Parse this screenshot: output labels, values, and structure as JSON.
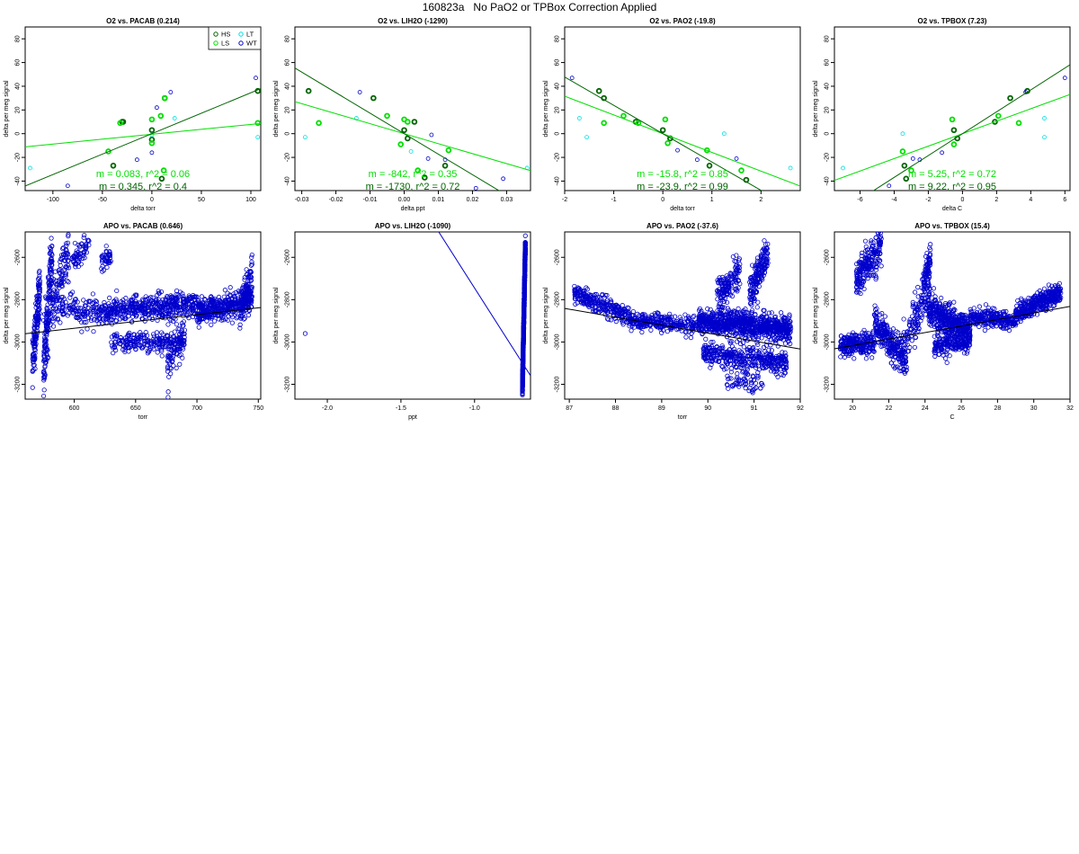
{
  "page": {
    "title": "160823a   No PaO2 or TPBox Correction Applied"
  },
  "colors": {
    "hs": "#006400",
    "ls": "#00e000",
    "lt": "#00e0e0",
    "wt": "#0000cc",
    "fit_dark": "#006400",
    "fit_light": "#00e000",
    "axis": "#000000"
  },
  "chart_data": [
    {
      "type": "scatter",
      "title": "O2 vs. PACAB (0.214)",
      "xlabel": "delta torr",
      "ylabel": "delta per meg signal",
      "xlim": [
        -128,
        110
      ],
      "ylim": [
        -48,
        90
      ],
      "xticks": [
        -100,
        -50,
        0,
        50,
        100
      ],
      "yticks": [
        -40,
        -20,
        0,
        20,
        40,
        60,
        80
      ],
      "legend": {
        "position": "top-right",
        "entries": [
          {
            "key": "hs",
            "label": "HS"
          },
          {
            "key": "lt",
            "label": "LT"
          },
          {
            "key": "ls",
            "label": "LS"
          },
          {
            "key": "wt",
            "label": "WT"
          }
        ]
      },
      "fits": [
        {
          "key": "fit_light",
          "slope": 0.083,
          "intercept": -0.5,
          "label": "m = 0.083, r^2 = 0.06"
        },
        {
          "key": "fit_dark",
          "slope": 0.345,
          "intercept": 0,
          "label": "m = 0.345, r^2 = 0.4"
        }
      ],
      "series": [
        {
          "key": "hs",
          "points": [
            [
              -30,
              10
            ],
            [
              -29,
              10
            ],
            [
              0,
              3
            ],
            [
              0,
              -5
            ],
            [
              10,
              -38
            ],
            [
              13,
              30
            ],
            [
              107,
              36
            ],
            [
              -39,
              -27
            ]
          ]
        },
        {
          "key": "ls",
          "points": [
            [
              -32,
              9
            ],
            [
              0,
              12
            ],
            [
              0,
              -8
            ],
            [
              9,
              15
            ],
            [
              12,
              -31
            ],
            [
              13,
              30
            ],
            [
              107,
              9
            ],
            [
              -44,
              -15
            ]
          ]
        },
        {
          "key": "lt",
          "points": [
            [
              -123,
              -29
            ],
            [
              0,
              -1
            ],
            [
              23,
              13
            ],
            [
              107,
              -3
            ]
          ]
        },
        {
          "key": "wt",
          "points": [
            [
              -85,
              -44
            ],
            [
              -15,
              -22
            ],
            [
              0,
              -16
            ],
            [
              5,
              22
            ],
            [
              19,
              35
            ],
            [
              105,
              47
            ]
          ]
        }
      ]
    },
    {
      "type": "scatter",
      "title": "O2 vs. LIH2O (-1290)",
      "xlabel": "delta ppt",
      "ylabel": "delta per meg signal",
      "xlim": [
        -0.032,
        0.037
      ],
      "ylim": [
        -48,
        90
      ],
      "xticks": [
        -0.03,
        -0.02,
        -0.01,
        0.0,
        0.01,
        0.02,
        0.03
      ],
      "xtick_labels": [
        "-0.03",
        "-0.02",
        "-0.01",
        "0.00",
        "0.01",
        "0.02",
        "0.03"
      ],
      "yticks": [
        -40,
        -20,
        0,
        20,
        40,
        60,
        80
      ],
      "fits": [
        {
          "key": "fit_light",
          "slope": -842,
          "intercept": 0,
          "label": "m = -842, r^2 = 0.35"
        },
        {
          "key": "fit_dark",
          "slope": -1730,
          "intercept": 0,
          "label": "m = -1730, r^2 = 0.72"
        }
      ],
      "series": [
        {
          "key": "hs",
          "points": [
            [
              -0.028,
              36
            ],
            [
              -0.009,
              30
            ],
            [
              0,
              3
            ],
            [
              0.001,
              -4
            ],
            [
              0.003,
              10
            ],
            [
              0.006,
              -37
            ],
            [
              0.012,
              -27
            ]
          ]
        },
        {
          "key": "ls",
          "points": [
            [
              -0.025,
              9
            ],
            [
              -0.005,
              15
            ],
            [
              0,
              12
            ],
            [
              -0.001,
              -9
            ],
            [
              0.001,
              10
            ],
            [
              0.004,
              -31
            ],
            [
              0.013,
              -14
            ]
          ]
        },
        {
          "key": "lt",
          "points": [
            [
              -0.029,
              -3
            ],
            [
              -0.014,
              13
            ],
            [
              0.002,
              -15
            ],
            [
              0.036,
              -29
            ]
          ]
        },
        {
          "key": "wt",
          "points": [
            [
              -0.013,
              35
            ],
            [
              0.007,
              -21
            ],
            [
              0.008,
              -1
            ],
            [
              0.012,
              -22
            ],
            [
              0.021,
              -46
            ],
            [
              0.029,
              -38
            ]
          ]
        }
      ]
    },
    {
      "type": "scatter",
      "title": "O2 vs. PAO2 (-19.8)",
      "xlabel": "delta torr",
      "ylabel": "delta per meg signal",
      "xlim": [
        -2.0,
        2.8
      ],
      "ylim": [
        -48,
        90
      ],
      "xticks": [
        -2,
        -1,
        0,
        1,
        2
      ],
      "yticks": [
        -40,
        -20,
        0,
        20,
        40,
        60,
        80
      ],
      "fits": [
        {
          "key": "fit_light",
          "slope": -15.8,
          "intercept": 0,
          "label": "m = -15.8, r^2 = 0.85"
        },
        {
          "key": "fit_dark",
          "slope": -23.9,
          "intercept": 0,
          "label": "m = -23.9, r^2 = 0.99"
        }
      ],
      "series": [
        {
          "key": "hs",
          "points": [
            [
              -1.3,
              36
            ],
            [
              -1.2,
              30
            ],
            [
              -0.55,
              10
            ],
            [
              0,
              3
            ],
            [
              0.15,
              -4
            ],
            [
              0.95,
              -27
            ],
            [
              1.7,
              -39
            ]
          ]
        },
        {
          "key": "ls",
          "points": [
            [
              -0.8,
              15
            ],
            [
              -0.5,
              9
            ],
            [
              0.05,
              12
            ],
            [
              0.1,
              -8
            ],
            [
              0.9,
              -14
            ],
            [
              1.6,
              -31
            ],
            [
              -1.2,
              9
            ]
          ]
        },
        {
          "key": "lt",
          "points": [
            [
              -1.7,
              13
            ],
            [
              -1.55,
              -3
            ],
            [
              1.25,
              0
            ],
            [
              2.6,
              -29
            ]
          ]
        },
        {
          "key": "wt",
          "points": [
            [
              -1.85,
              47
            ],
            [
              0.7,
              -22
            ],
            [
              1.5,
              -21
            ],
            [
              0.3,
              -14
            ]
          ]
        }
      ]
    },
    {
      "type": "scatter",
      "title": "O2 vs. TPBOX (7.23)",
      "xlabel": "delta C",
      "ylabel": "delta per meg signal",
      "xlim": [
        -7.5,
        6.3
      ],
      "ylim": [
        -48,
        90
      ],
      "xticks": [
        -6,
        -4,
        -2,
        0,
        2,
        4,
        6
      ],
      "yticks": [
        -40,
        -20,
        0,
        20,
        40,
        60,
        80
      ],
      "fits": [
        {
          "key": "fit_light",
          "slope": 5.25,
          "intercept": 0,
          "label": "m = 5.25, r^2 = 0.72"
        },
        {
          "key": "fit_dark",
          "slope": 9.22,
          "intercept": 0,
          "label": "m = 9.22, r^2 = 0.95"
        }
      ],
      "series": [
        {
          "key": "hs",
          "points": [
            [
              -3.4,
              -27
            ],
            [
              -3.3,
              -38
            ],
            [
              -0.5,
              3
            ],
            [
              -0.3,
              -4
            ],
            [
              1.9,
              10
            ],
            [
              2.8,
              30
            ],
            [
              3.8,
              36
            ]
          ]
        },
        {
          "key": "ls",
          "points": [
            [
              -3.5,
              -15
            ],
            [
              -0.6,
              12
            ],
            [
              -0.5,
              -9
            ],
            [
              2.1,
              15
            ],
            [
              3.3,
              9
            ],
            [
              -3.0,
              -31
            ]
          ]
        },
        {
          "key": "lt",
          "points": [
            [
              -7.0,
              -29
            ],
            [
              -3.5,
              0
            ],
            [
              4.8,
              13
            ],
            [
              4.8,
              -3
            ]
          ]
        },
        {
          "key": "wt",
          "points": [
            [
              -4.3,
              -44
            ],
            [
              -1.2,
              -16
            ],
            [
              -2.5,
              -22
            ],
            [
              6.0,
              47
            ],
            [
              3.7,
              35
            ],
            [
              -2.9,
              -21
            ]
          ]
        }
      ]
    },
    {
      "type": "scatter",
      "title": "APO vs. PACAB (0.646)",
      "xlabel": "torr",
      "ylabel": "delta per meg signal",
      "xlim": [
        560,
        752
      ],
      "ylim": [
        -3270,
        -2480
      ],
      "xticks": [
        600,
        650,
        700,
        750
      ],
      "yticks": [
        -3200,
        -3000,
        -2800,
        -2600
      ],
      "fit": {
        "slope": 0.646,
        "intercept": -3323
      },
      "segments": [
        {
          "x": [
            566,
            572
          ],
          "y": [
            -3120,
            -2720
          ],
          "n": 140,
          "spread": 120
        },
        {
          "x": [
            575,
            582
          ],
          "y": [
            -3130,
            -2600
          ],
          "n": 180,
          "spread": 170
        },
        {
          "x": [
            582,
            596
          ],
          "y": [
            -2850,
            -2560
          ],
          "n": 100,
          "spread": 110
        },
        {
          "x": [
            598,
            612
          ],
          "y": [
            -2620,
            -2540
          ],
          "n": 60,
          "spread": 60
        },
        {
          "x": [
            586,
            620
          ],
          "y": [
            -2840,
            -2860
          ],
          "n": 130,
          "spread": 70
        },
        {
          "x": [
            622,
            630
          ],
          "y": [
            -2640,
            -2580
          ],
          "n": 40,
          "spread": 50
        },
        {
          "x": [
            620,
            700
          ],
          "y": [
            -2860,
            -2820
          ],
          "n": 500,
          "spread": 60
        },
        {
          "x": [
            630,
            690
          ],
          "y": [
            -3000,
            -3010
          ],
          "n": 230,
          "spread": 45
        },
        {
          "x": [
            676,
            690
          ],
          "y": [
            -3100,
            -2950
          ],
          "n": 70,
          "spread": 100
        },
        {
          "x": [
            700,
            745
          ],
          "y": [
            -2860,
            -2800
          ],
          "n": 430,
          "spread": 60
        },
        {
          "x": [
            735,
            745
          ],
          "y": [
            -2900,
            -2650
          ],
          "n": 90,
          "spread": 100
        }
      ]
    },
    {
      "type": "scatter",
      "title": "APO vs. LIH2O (-1090)",
      "xlabel": "ppt",
      "ylabel": "delta per meg signal",
      "xlim": [
        -2.22,
        -0.62
      ],
      "ylim": [
        -3270,
        -2480
      ],
      "xticks": [
        -2.0,
        -1.5,
        -1.0
      ],
      "xtick_labels": [
        "-2.0",
        "-1.5",
        "-1.0"
      ],
      "yticks": [
        -3200,
        -3000,
        -2800,
        -2600
      ],
      "fit": {
        "slope": -1090,
        "intercept": -3835
      },
      "points": [
        [
          -2.15,
          -2960
        ]
      ],
      "segments": [
        {
          "x": [
            -0.675,
            -0.655
          ],
          "y": [
            -3220,
            -2540
          ],
          "n": 900,
          "spread": 40
        }
      ]
    },
    {
      "type": "scatter",
      "title": "APO vs. PAO2 (-37.6)",
      "xlabel": "torr",
      "ylabel": "delta per meg signal",
      "xlim": [
        86.9,
        92.0
      ],
      "ylim": [
        -3270,
        -2480
      ],
      "xticks": [
        87,
        88,
        89,
        90,
        91,
        92
      ],
      "yticks": [
        -3200,
        -3000,
        -2800,
        -2600
      ],
      "fit": {
        "slope": -37.6,
        "intercept": 426
      },
      "segments": [
        {
          "x": [
            87.1,
            88.3
          ],
          "y": [
            -2770,
            -2880
          ],
          "n": 260,
          "spread": 45
        },
        {
          "x": [
            88.3,
            89.8
          ],
          "y": [
            -2900,
            -2920
          ],
          "n": 280,
          "spread": 40
        },
        {
          "x": [
            89.8,
            91.8
          ],
          "y": [
            -2900,
            -2940
          ],
          "n": 900,
          "spread": 60
        },
        {
          "x": [
            89.9,
            91.7
          ],
          "y": [
            -3050,
            -3100
          ],
          "n": 400,
          "spread": 55
        },
        {
          "x": [
            90.2,
            90.7
          ],
          "y": [
            -2800,
            -2650
          ],
          "n": 150,
          "spread": 80
        },
        {
          "x": [
            90.9,
            91.3
          ],
          "y": [
            -2780,
            -2580
          ],
          "n": 170,
          "spread": 80
        },
        {
          "x": [
            90.4,
            91.2
          ],
          "y": [
            -3180,
            -3200
          ],
          "n": 60,
          "spread": 50
        }
      ]
    },
    {
      "type": "scatter",
      "title": "APO vs. TPBOX (15.4)",
      "xlabel": "C",
      "ylabel": "delta per meg signal",
      "xlim": [
        19.0,
        32.0
      ],
      "ylim": [
        -3270,
        -2480
      ],
      "xticks": [
        20,
        22,
        24,
        26,
        28,
        30,
        32
      ],
      "yticks": [
        -3200,
        -3000,
        -2800,
        -2600
      ],
      "fit": {
        "slope": 15.4,
        "intercept": -3325
      },
      "segments": [
        {
          "x": [
            19.3,
            21.2
          ],
          "y": [
            -3020,
            -3000
          ],
          "n": 250,
          "spread": 50
        },
        {
          "x": [
            20.2,
            21.6
          ],
          "y": [
            -2700,
            -2560
          ],
          "n": 220,
          "spread": 90
        },
        {
          "x": [
            21.2,
            23.0
          ],
          "y": [
            -2900,
            -3100
          ],
          "n": 260,
          "spread": 80
        },
        {
          "x": [
            22.8,
            24.3
          ],
          "y": [
            -3040,
            -2700
          ],
          "n": 150,
          "spread": 120
        },
        {
          "x": [
            23.9,
            24.3
          ],
          "y": [
            -2720,
            -2580
          ],
          "n": 60,
          "spread": 60
        },
        {
          "x": [
            24.2,
            26.5
          ],
          "y": [
            -2850,
            -2950
          ],
          "n": 450,
          "spread": 70
        },
        {
          "x": [
            24.5,
            26.5
          ],
          "y": [
            -3020,
            -3000
          ],
          "n": 200,
          "spread": 50
        },
        {
          "x": [
            26.5,
            29.0
          ],
          "y": [
            -2880,
            -2900
          ],
          "n": 250,
          "spread": 40
        },
        {
          "x": [
            29.0,
            31.5
          ],
          "y": [
            -2870,
            -2760
          ],
          "n": 380,
          "spread": 45
        }
      ]
    }
  ]
}
